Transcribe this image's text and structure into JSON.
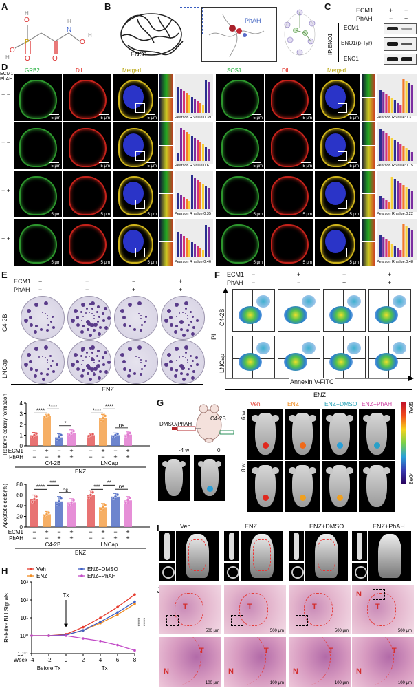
{
  "panels": {
    "A": "A",
    "B": "B",
    "C": "C",
    "D": "D",
    "E": "E",
    "F": "F",
    "G": "G",
    "H": "H",
    "I": "I",
    "J": "J"
  },
  "panelB": {
    "protein": "ENO1",
    "ligand": "PhAH"
  },
  "panelC": {
    "ecm1": "ECM1",
    "phah": "PhAH",
    "ip": "IP:ENO1",
    "ecm1_signs": [
      "+",
      "+"
    ],
    "phah_signs": [
      "−",
      "+"
    ],
    "bands": [
      "ECM1",
      "ENO1(p-Tyr)",
      "ENO1"
    ]
  },
  "panelD": {
    "row_header_1": "ECM1",
    "row_header_2": "PhAH",
    "columns": [
      "GRB2",
      "DiI",
      "Merged",
      "SOS1",
      "DiI",
      "Merged"
    ],
    "rows": [
      {
        "signs": "− −",
        "pearson_left": "Pearson R value:0.39",
        "pearson_right": "Pearson R value:0.31"
      },
      {
        "signs": "+ −",
        "pearson_left": "Pearson R value:0.61",
        "pearson_right": "Pearson R value:0.75"
      },
      {
        "signs": "− +",
        "pearson_left": "Pearson R value:0.35",
        "pearson_right": "Pearson R value:0.22"
      },
      {
        "signs": "+ +",
        "pearson_left": "Pearson R value:0.46",
        "pearson_right": "Pearson R value:0.48"
      }
    ],
    "scale": "5 μm"
  },
  "panelE": {
    "ecm1": "ECM1",
    "phah": "PhAH",
    "ecm1_signs": [
      "−",
      "+",
      "−",
      "+"
    ],
    "phah_signs": [
      "−",
      "−",
      "+",
      "+"
    ],
    "rows": [
      "C4-2B",
      "LNCap"
    ],
    "treatment": "ENZ"
  },
  "panelF": {
    "ecm1": "ECM1",
    "phah": "PhAH",
    "ecm1_signs": [
      "−",
      "+",
      "−",
      "+"
    ],
    "phah_signs": [
      "−",
      "−",
      "+",
      "+"
    ],
    "rows": [
      "C4-2B",
      "LNCap"
    ],
    "ylabel": "PI",
    "xlabel": "Annexin V-FITC",
    "treatment": "ENZ"
  },
  "panelG": {
    "injection": "DMSO/PhAH",
    "cell": "C4-2B",
    "groups": [
      "Veh",
      "ENZ",
      "ENZ+DMSO",
      "ENZ+PhAH"
    ],
    "group_colors": [
      "#e63b2e",
      "#f08c21",
      "#2aa3b8",
      "#d04aa7"
    ],
    "times": [
      "6 w",
      "8 w"
    ],
    "timeline": [
      "-4 w",
      "0"
    ],
    "colorbar_max": "7e05",
    "colorbar_min": "8e04"
  },
  "panelI": {
    "groups": [
      "Veh",
      "ENZ",
      "ENZ+DMSO",
      "ENZ+PhAH"
    ]
  },
  "panelJ": {
    "scale_top": "500 μm",
    "scale_bottom": "100 μm",
    "T": "T",
    "N": "N"
  },
  "chart_data": [
    {
      "type": "bar",
      "ylabel": "Relative colony formation",
      "ylim": [
        0,
        4
      ],
      "yticks": [
        "0",
        "1",
        "2",
        "3",
        "4"
      ],
      "groups": [
        "C4-2B",
        "LNCap"
      ],
      "treatment": "ENZ",
      "row_labels": [
        "ECM1",
        "PhAH"
      ],
      "ecm1_signs": [
        "−",
        "+",
        "−",
        "+",
        "−",
        "+",
        "−",
        "+"
      ],
      "phah_signs": [
        "−",
        "−",
        "+",
        "+",
        "−",
        "−",
        "+",
        "+"
      ],
      "values": [
        1.0,
        2.8,
        0.8,
        1.2,
        1.0,
        2.6,
        1.0,
        1.05
      ],
      "errors": [
        0.25,
        0.15,
        0.35,
        0.3,
        0.15,
        0.35,
        0.2,
        0.25
      ],
      "colors": [
        "#e45a5a",
        "#f5a14a",
        "#5470c6",
        "#e27bd0",
        "#e45a5a",
        "#f5a14a",
        "#5470c6",
        "#e27bd0"
      ],
      "significance": [
        {
          "from": 0,
          "to": 1,
          "text": "****"
        },
        {
          "from": 1,
          "to": 2,
          "text": "****"
        },
        {
          "from": 2,
          "to": 3,
          "text": "*"
        },
        {
          "from": 4,
          "to": 5,
          "text": "****"
        },
        {
          "from": 5,
          "to": 6,
          "text": "****"
        },
        {
          "from": 6,
          "to": 7,
          "text": "ns"
        }
      ]
    },
    {
      "type": "bar",
      "ylabel": "Apoptotic cells(%)",
      "ylim": [
        0,
        80
      ],
      "yticks": [
        "0",
        "20",
        "40",
        "60",
        "80"
      ],
      "groups": [
        "C4-2B",
        "LNCap"
      ],
      "treatment": "ENZ",
      "row_labels": [
        "ECM1",
        "PhAH"
      ],
      "ecm1_signs": [
        "−",
        "+",
        "−",
        "+",
        "−",
        "+",
        "−",
        "+"
      ],
      "phah_signs": [
        "−",
        "−",
        "+",
        "+",
        "−",
        "−",
        "+",
        "+"
      ],
      "values": [
        52,
        24,
        48,
        46,
        60,
        37,
        57,
        50
      ],
      "errors": [
        8,
        5,
        9,
        7,
        8,
        7,
        6,
        7
      ],
      "colors": [
        "#e45a5a",
        "#f5a14a",
        "#5470c6",
        "#e27bd0",
        "#e45a5a",
        "#f5a14a",
        "#5470c6",
        "#e27bd0"
      ],
      "significance": [
        {
          "from": 0,
          "to": 1,
          "text": "****"
        },
        {
          "from": 1,
          "to": 2,
          "text": "***"
        },
        {
          "from": 2,
          "to": 3,
          "text": "ns"
        },
        {
          "from": 4,
          "to": 5,
          "text": "***"
        },
        {
          "from": 5,
          "to": 6,
          "text": "**"
        },
        {
          "from": 6,
          "to": 7,
          "text": "ns"
        }
      ]
    },
    {
      "type": "line",
      "ylabel": "Relative BLI Signals",
      "yscale": "log",
      "ylim": [
        -1,
        3
      ],
      "ytick_labels": [
        "10⁻¹",
        "10⁰",
        "10¹",
        "10²",
        "10³"
      ],
      "x": [
        -4,
        -2,
        0,
        2,
        4,
        6,
        8
      ],
      "xlabel_prefix": "Week",
      "x_tick_labels": [
        "-4",
        "-2",
        "0",
        "2",
        "4",
        "6",
        "8"
      ],
      "phase_labels": [
        "Before Tx",
        "Tx"
      ],
      "annotation": "Tx",
      "significance": "****",
      "series": [
        {
          "name": "Veh",
          "color": "#e63b2e",
          "values": [
            1,
            1,
            1.2,
            3,
            10,
            40,
            200
          ]
        },
        {
          "name": "ENZ",
          "color": "#f08c21",
          "values": [
            1,
            1,
            1.1,
            2,
            5,
            15,
            60
          ]
        },
        {
          "name": "ENZ+DMSO",
          "color": "#3f5ec4",
          "values": [
            1,
            1,
            1.1,
            2,
            6,
            20,
            80
          ]
        },
        {
          "name": "ENZ+PhAH",
          "color": "#c24ac7",
          "values": [
            1,
            1,
            1,
            0.7,
            0.5,
            0.3,
            0.15
          ]
        }
      ]
    }
  ]
}
